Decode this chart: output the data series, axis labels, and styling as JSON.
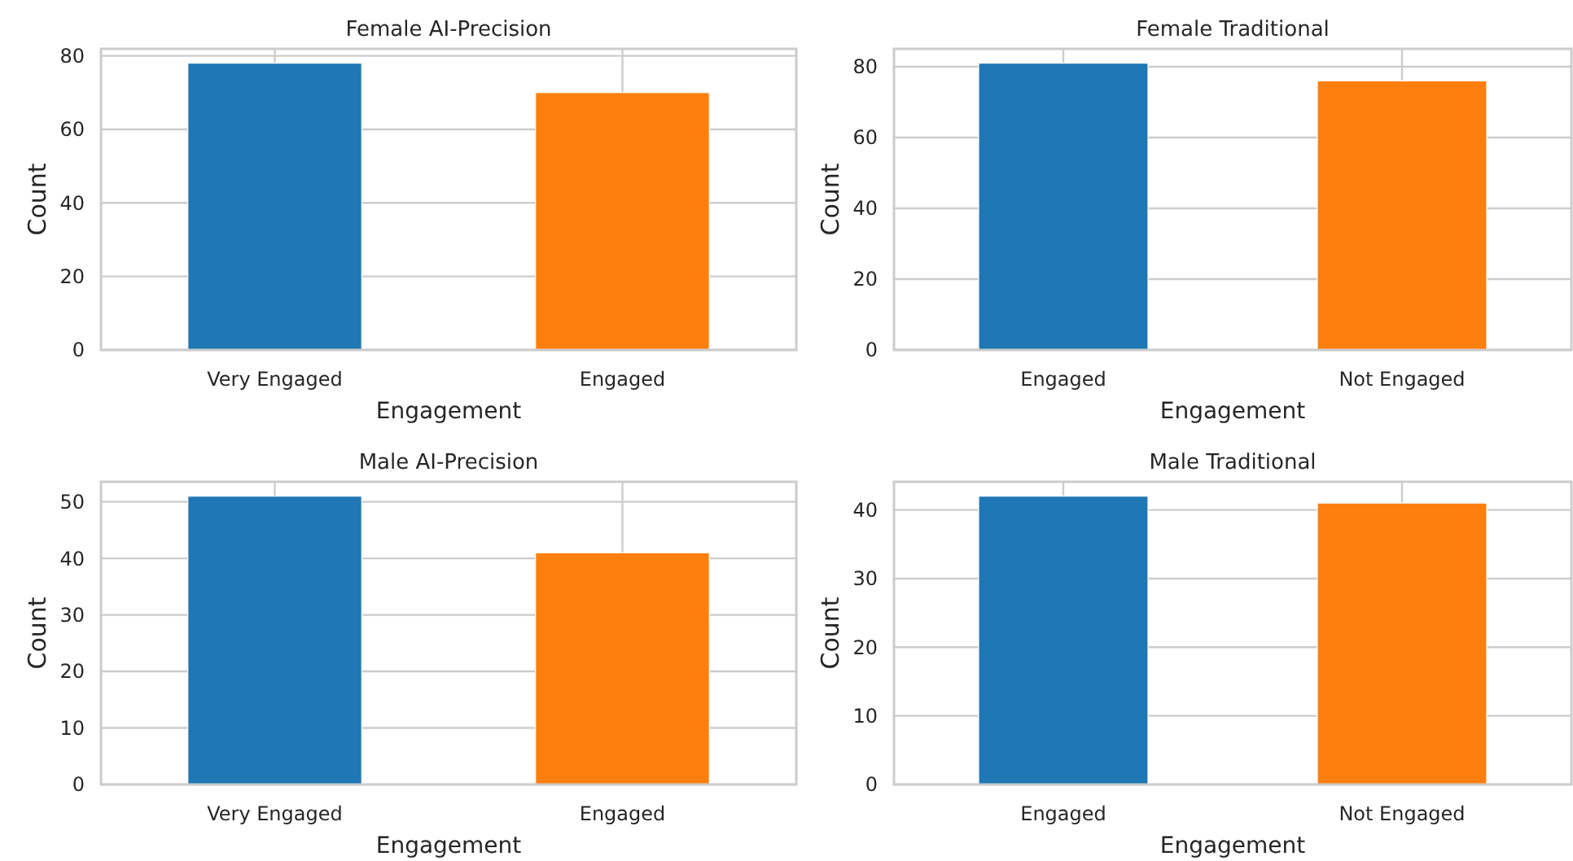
{
  "chart_data": [
    {
      "type": "bar",
      "title": "Female AI-Precision",
      "xlabel": "Engagement",
      "ylabel": "Count",
      "categories": [
        "Very Engaged",
        "Engaged"
      ],
      "values": [
        78,
        70
      ],
      "colors": [
        "#1f77b4",
        "#ff7f0e"
      ],
      "ylim": [
        0,
        81.9
      ],
      "yticks": [
        0,
        20,
        40,
        60,
        80
      ],
      "grid": true
    },
    {
      "type": "bar",
      "title": "Female Traditional",
      "xlabel": "Engagement",
      "ylabel": "Count",
      "categories": [
        "Engaged",
        "Not Engaged"
      ],
      "values": [
        81,
        76
      ],
      "colors": [
        "#1f77b4",
        "#ff7f0e"
      ],
      "ylim": [
        0,
        85.05
      ],
      "yticks": [
        0,
        20,
        40,
        60,
        80
      ],
      "grid": true
    },
    {
      "type": "bar",
      "title": "Male AI-Precision",
      "xlabel": "Engagement",
      "ylabel": "Count",
      "categories": [
        "Very Engaged",
        "Engaged"
      ],
      "values": [
        51,
        41
      ],
      "colors": [
        "#1f77b4",
        "#ff7f0e"
      ],
      "ylim": [
        0,
        53.55
      ],
      "yticks": [
        0,
        10,
        20,
        30,
        40,
        50
      ],
      "grid": true
    },
    {
      "type": "bar",
      "title": "Male Traditional",
      "xlabel": "Engagement",
      "ylabel": "Count",
      "categories": [
        "Engaged",
        "Not Engaged"
      ],
      "values": [
        42,
        41
      ],
      "colors": [
        "#1f77b4",
        "#ff7f0e"
      ],
      "ylim": [
        0,
        44.1
      ],
      "yticks": [
        0,
        10,
        20,
        30,
        40
      ],
      "grid": true
    }
  ]
}
